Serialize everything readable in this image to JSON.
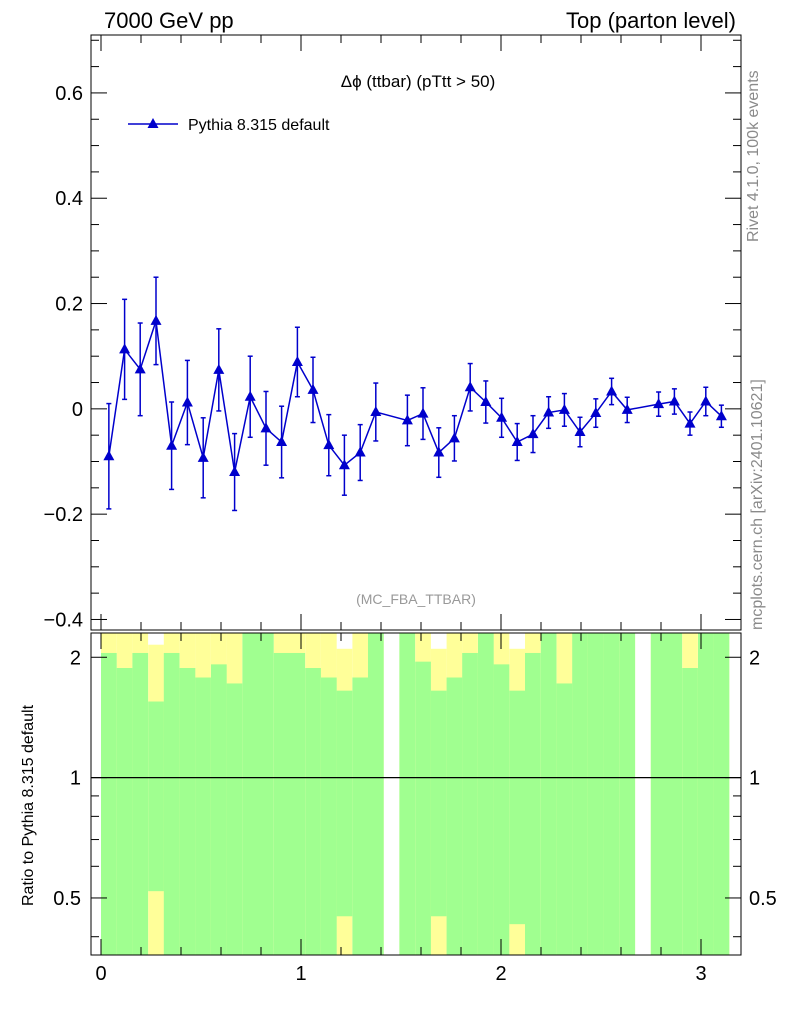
{
  "header": {
    "left": "7000 GeV pp",
    "right": "Top (parton level)"
  },
  "side_labels": {
    "rivet": "Rivet 4.1.0,  100k events",
    "mcplots": "mcplots.cern.ch [arXiv:2401.10621]"
  },
  "chart_data": [
    {
      "type": "line",
      "title": "Δϕ (ttbar) (pTtt > 50)",
      "analysis_label": "(MC_FBA_TTBAR)",
      "xlim": [
        -0.05,
        3.2
      ],
      "ylim": [
        -0.42,
        0.71
      ],
      "yticks": [
        -0.4,
        -0.2,
        0,
        0.2,
        0.4,
        0.6
      ],
      "ytick_labels": [
        "−0.4",
        "−0.2",
        "0",
        "0.2",
        "0.4",
        "0.6"
      ],
      "legend": {
        "position": "top-left",
        "entry": "Pythia 8.315 default"
      },
      "series": [
        {
          "name": "Pythia 8.315 default",
          "color": "#0000cc",
          "marker": "triangle",
          "x": [
            0.0393,
            0.118,
            0.196,
            0.275,
            0.353,
            0.432,
            0.511,
            0.589,
            0.668,
            0.746,
            0.825,
            0.903,
            0.982,
            1.06,
            1.139,
            1.217,
            1.296,
            1.374,
            1.532,
            1.61,
            1.689,
            1.767,
            1.846,
            1.924,
            2.003,
            2.081,
            2.16,
            2.238,
            2.317,
            2.395,
            2.474,
            2.553,
            2.631,
            2.788,
            2.867,
            2.945,
            3.024,
            3.102
          ],
          "y": [
            -0.09,
            0.113,
            0.075,
            0.167,
            -0.07,
            0.012,
            -0.093,
            0.074,
            -0.12,
            0.023,
            -0.037,
            -0.063,
            0.089,
            0.036,
            -0.069,
            -0.107,
            -0.083,
            -0.006,
            -0.022,
            -0.009,
            -0.083,
            -0.056,
            0.041,
            0.013,
            -0.017,
            -0.063,
            -0.048,
            -0.007,
            -0.002,
            -0.044,
            -0.008,
            0.033,
            -0.002,
            0.009,
            0.014,
            -0.028,
            0.014,
            -0.014
          ],
          "yerr": [
            0.1,
            0.095,
            0.088,
            0.083,
            0.083,
            0.08,
            0.076,
            0.078,
            0.073,
            0.077,
            0.07,
            0.068,
            0.066,
            0.062,
            0.058,
            0.057,
            0.053,
            0.055,
            0.048,
            0.049,
            0.047,
            0.043,
            0.045,
            0.04,
            0.037,
            0.035,
            0.035,
            0.03,
            0.031,
            0.028,
            0.027,
            0.025,
            0.024,
            0.023,
            0.024,
            0.022,
            0.027,
            0.021
          ]
        }
      ]
    },
    {
      "type": "bar",
      "ylabel": "Ratio to Pythia 8.315 default",
      "xlim": [
        -0.05,
        3.2
      ],
      "ylim": [
        0.36,
        2.3
      ],
      "xticks": [
        0,
        1,
        2,
        3
      ],
      "xtick_labels": [
        "0",
        "1",
        "2",
        "3"
      ],
      "yticks": [
        0.5,
        1,
        2
      ],
      "ytick_labels": [
        "0.5",
        "1",
        "2"
      ],
      "reference_line": 1,
      "bands": {
        "green_color": "#a0ff90",
        "yellow_color": "#ffff99",
        "bin_low_edges": [
          0.0,
          0.0785,
          0.157,
          0.236,
          0.314,
          0.393,
          0.471,
          0.55,
          0.628,
          0.707,
          0.785,
          0.864,
          0.942,
          1.021,
          1.1,
          1.178,
          1.257,
          1.335,
          1.414,
          1.492,
          1.571,
          1.649,
          1.728,
          1.806,
          1.885,
          1.963,
          2.042,
          2.12,
          2.199,
          2.278,
          2.356,
          2.435,
          2.513,
          2.592,
          2.67,
          2.749,
          2.827,
          2.906,
          2.985,
          3.063
        ],
        "bin_width": 0.0785,
        "green_low": [
          0.36,
          0.36,
          0.36,
          0.52,
          0.36,
          0.36,
          0.36,
          0.36,
          0.36,
          0.36,
          0.36,
          0.36,
          0.36,
          0.36,
          0.36,
          0.45,
          0.36,
          0.36,
          null,
          0.36,
          0.36,
          0.45,
          0.36,
          0.36,
          0.36,
          0.36,
          0.43,
          0.36,
          0.36,
          0.36,
          0.36,
          0.36,
          0.36,
          0.36,
          null,
          0.36,
          0.36,
          0.36,
          0.36,
          0.36
        ],
        "green_high": [
          2.05,
          1.88,
          2.05,
          1.55,
          2.05,
          1.88,
          1.78,
          1.92,
          1.72,
          2.3,
          2.3,
          2.05,
          2.05,
          1.88,
          1.78,
          1.65,
          1.78,
          2.3,
          null,
          2.3,
          1.95,
          1.65,
          1.78,
          2.05,
          2.3,
          1.92,
          1.65,
          2.05,
          2.3,
          1.72,
          2.3,
          2.3,
          2.3,
          2.3,
          null,
          2.3,
          2.3,
          1.88,
          2.3,
          2.3
        ],
        "yellow_low": [
          0.36,
          0.36,
          0.36,
          0.36,
          0.36,
          0.36,
          0.36,
          0.36,
          0.36,
          0.36,
          0.36,
          0.36,
          0.36,
          0.36,
          0.36,
          0.36,
          0.36,
          0.36,
          null,
          0.36,
          0.36,
          0.36,
          0.36,
          0.36,
          0.36,
          0.36,
          0.36,
          0.36,
          0.36,
          0.36,
          0.36,
          0.36,
          0.36,
          0.36,
          null,
          0.36,
          0.36,
          0.36,
          0.36,
          0.36
        ],
        "yellow_high": [
          2.3,
          2.3,
          2.3,
          2.15,
          2.3,
          2.3,
          2.3,
          2.3,
          2.3,
          2.3,
          2.3,
          2.3,
          2.3,
          2.3,
          2.3,
          2.1,
          2.3,
          2.3,
          null,
          2.3,
          2.3,
          2.1,
          2.3,
          2.3,
          2.3,
          2.3,
          2.1,
          2.3,
          2.3,
          2.3,
          2.3,
          2.15,
          2.3,
          2.3,
          null,
          2.3,
          2.3,
          2.3,
          2.3,
          2.3
        ]
      }
    }
  ]
}
